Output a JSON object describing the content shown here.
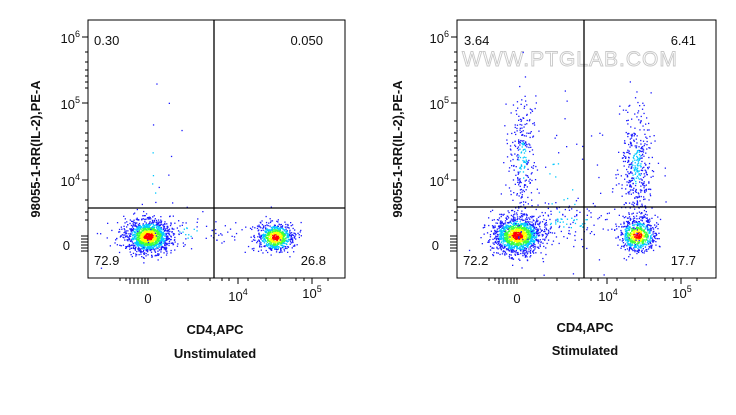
{
  "watermark": "WWW.PTGLAB.COM",
  "colors": {
    "density_low": "#1a1aff",
    "density_mid_low": "#00c8ff",
    "density_mid": "#3cff3c",
    "density_mid_high": "#ffff00",
    "density_high": "#ff0000",
    "gate_line": "#000000"
  },
  "chart_data": [
    {
      "type": "scatter",
      "subtitle": "Unstimulated",
      "xlabel": "CD4,APC",
      "ylabel": "98055-1-RR(IL-2),PE-A",
      "x_scale": "biexponential",
      "y_scale": "biexponential",
      "x_ticks": [
        "0",
        "10^4",
        "10^5"
      ],
      "y_ticks": [
        "0",
        "10^4",
        "10^5",
        "10^6"
      ],
      "quadrants": {
        "top_left": "0.30",
        "top_right": "0.050",
        "bottom_left": "72.9",
        "bottom_right": "26.8"
      },
      "populations": [
        {
          "name": "CD4- IL-2-",
          "x_center": 0,
          "y_center": 0,
          "fraction": 72.9
        },
        {
          "name": "CD4+ IL-2-",
          "x_center": 40000,
          "y_center": 0,
          "fraction": 26.8
        }
      ]
    },
    {
      "type": "scatter",
      "subtitle": "Stimulated",
      "xlabel": "CD4,APC",
      "ylabel": "98055-1-RR(IL-2),PE-A",
      "x_scale": "biexponential",
      "y_scale": "biexponential",
      "x_ticks": [
        "0",
        "10^4",
        "10^5"
      ],
      "y_ticks": [
        "0",
        "10^4",
        "10^5",
        "10^6"
      ],
      "quadrants": {
        "top_left": "3.64",
        "top_right": "6.41",
        "bottom_left": "72.2",
        "bottom_right": "17.7"
      },
      "populations": [
        {
          "name": "CD4- IL-2-",
          "x_center": 0,
          "y_center": 0,
          "fraction": 72.2
        },
        {
          "name": "CD4+ IL-2-",
          "x_center": 40000,
          "y_center": 0,
          "fraction": 17.7
        },
        {
          "name": "CD4- IL-2+",
          "x_center": 0,
          "y_center": 30000,
          "fraction": 3.64
        },
        {
          "name": "CD4+ IL-2+",
          "x_center": 40000,
          "y_center": 30000,
          "fraction": 6.41
        }
      ]
    }
  ]
}
